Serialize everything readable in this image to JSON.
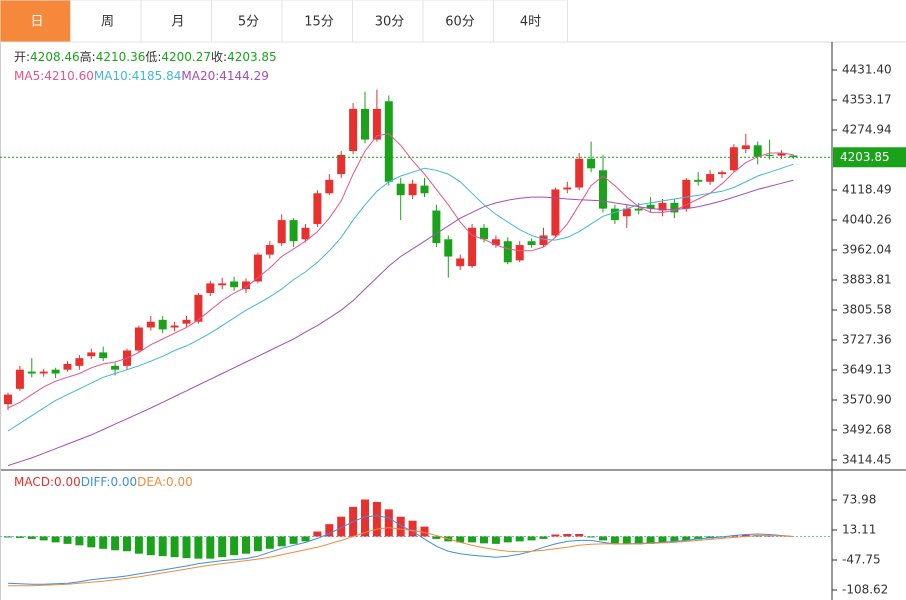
{
  "tabs": [
    "日",
    "周",
    "月",
    "5分",
    "15分",
    "30分",
    "60分",
    "4时"
  ],
  "active_tab": 0,
  "header_stats": [
    {
      "label": "开:",
      "value": "4208.46"
    },
    {
      "label": "高:",
      "value": "4210.36"
    },
    {
      "label": "低:",
      "value": "4200.27"
    },
    {
      "label": "收:",
      "value": "4203.85"
    }
  ],
  "chart_data": [
    {
      "type": "candlestick",
      "up_color": "#e8312f",
      "down_color": "#1aa31a",
      "last_price_color": "#1aa31a",
      "ylim": [
        3388.4,
        4496.6
      ],
      "yticks": [
        {
          "value": 4431.4,
          "label": "4431.40"
        },
        4353.17,
        4274.94,
        4118.49,
        4040.26,
        3962.04,
        3883.81,
        3805.58,
        3727.36,
        3649.13,
        {
          "value": 3570.9,
          "label": "3570.90"
        },
        3492.68,
        3414.45
      ],
      "open": [
        3560,
        3600,
        3645,
        3640,
        3650,
        3650,
        3660,
        3685,
        3695,
        3660,
        3660,
        3700,
        3760,
        3780,
        3760,
        3770,
        3775,
        3850,
        3870,
        3880,
        3860,
        3880,
        3950,
        3980,
        4040,
        3990,
        4030,
        4110,
        4160,
        4220,
        4330,
        4250,
        4350,
        4135,
        4105,
        4130,
        4065,
        3990,
        3920,
        3920,
        4020,
        3975,
        3985,
        3935,
        3985,
        3975,
        4000,
        4120,
        4125,
        4200,
        4170,
        4070,
        4050,
        4070,
        4080,
        4065,
        4085,
        4070,
        4145,
        4140,
        4160,
        4170,
        4225,
        4235,
        4210,
        4208,
        4208.46
      ],
      "high": [
        3590,
        3660,
        3680,
        3652,
        3655,
        3672,
        3688,
        3705,
        3710,
        3668,
        3705,
        3765,
        3790,
        3790,
        3775,
        3790,
        3850,
        3882,
        3890,
        3892,
        3888,
        3955,
        3985,
        4055,
        4045,
        4030,
        4118,
        4160,
        4220,
        4345,
        4375,
        4380,
        4365,
        4150,
        4145,
        4150,
        4080,
        4000,
        3950,
        4030,
        4030,
        4000,
        3995,
        3985,
        3992,
        4020,
        4125,
        4140,
        4215,
        4245,
        4210,
        4080,
        4080,
        4085,
        4100,
        4095,
        4095,
        4150,
        4165,
        4170,
        4170,
        4238,
        4265,
        4245,
        4250,
        4222,
        4210.36
      ],
      "low": [
        3545,
        3595,
        3630,
        3632,
        3628,
        3645,
        3650,
        3678,
        3672,
        3635,
        3650,
        3695,
        3752,
        3745,
        3750,
        3762,
        3770,
        3842,
        3860,
        3855,
        3850,
        3875,
        3940,
        3972,
        3970,
        3982,
        4022,
        4105,
        4150,
        4212,
        4240,
        4245,
        4130,
        4040,
        4095,
        4100,
        3970,
        3890,
        3910,
        3915,
        3982,
        3968,
        3925,
        3930,
        3968,
        3970,
        3995,
        4110,
        4118,
        4165,
        4060,
        4030,
        4020,
        4055,
        4060,
        4050,
        4045,
        4062,
        4130,
        4132,
        4150,
        4165,
        4215,
        4185,
        4198,
        4200,
        4200.27
      ],
      "close": [
        3585,
        3650,
        3640,
        3645,
        3640,
        3665,
        3680,
        3695,
        3680,
        3650,
        3700,
        3760,
        3775,
        3755,
        3765,
        3780,
        3845,
        3875,
        3875,
        3865,
        3880,
        3950,
        3975,
        4040,
        3985,
        4020,
        4110,
        4145,
        4210,
        4330,
        4250,
        4330,
        4140,
        4105,
        4135,
        4110,
        3980,
        3945,
        3940,
        4020,
        3990,
        3990,
        3930,
        3975,
        3975,
        4000,
        4120,
        4125,
        4200,
        4175,
        4070,
        4040,
        4070,
        4065,
        4070,
        4085,
        4060,
        4145,
        4140,
        4160,
        4165,
        4230,
        4235,
        4205,
        4208,
        4215,
        4203.85
      ],
      "series": [
        {
          "name": "MA5:",
          "value_label": "4210.60",
          "color": "#e8548b",
          "values": [
            3550,
            3565,
            3585,
            3605,
            3620,
            3630,
            3640,
            3655,
            3665,
            3670,
            3680,
            3695,
            3715,
            3730,
            3745,
            3760,
            3780,
            3805,
            3830,
            3850,
            3865,
            3890,
            3915,
            3945,
            3965,
            3985,
            4010,
            4045,
            4090,
            4160,
            4220,
            4260,
            4265,
            4235,
            4195,
            4160,
            4120,
            4080,
            4035,
            4000,
            3990,
            3975,
            3965,
            3960,
            3960,
            3970,
            3995,
            4030,
            4080,
            4130,
            4155,
            4130,
            4100,
            4075,
            4060,
            4060,
            4065,
            4080,
            4095,
            4110,
            4135,
            4165,
            4190,
            4205,
            4215,
            4215,
            4210.6
          ]
        },
        {
          "name": "MA10:",
          "value_label": "4185.84",
          "color": "#3fb8d8",
          "values": [
            3490,
            3510,
            3530,
            3550,
            3570,
            3585,
            3600,
            3615,
            3630,
            3640,
            3650,
            3660,
            3672,
            3685,
            3700,
            3712,
            3728,
            3745,
            3765,
            3785,
            3805,
            3822,
            3840,
            3860,
            3885,
            3905,
            3930,
            3960,
            3995,
            4040,
            4080,
            4115,
            4140,
            4155,
            4165,
            4175,
            4170,
            4160,
            4140,
            4110,
            4080,
            4055,
            4035,
            4015,
            4000,
            3990,
            3988,
            3995,
            4010,
            4030,
            4050,
            4060,
            4070,
            4080,
            4085,
            4090,
            4095,
            4100,
            4105,
            4110,
            4115,
            4125,
            4140,
            4155,
            4165,
            4175,
            4185.84
          ]
        },
        {
          "name": "MA20:",
          "value_label": "4144.29",
          "color": "#a64db8",
          "values": [
            3400,
            3410,
            3420,
            3432,
            3444,
            3456,
            3468,
            3480,
            3494,
            3508,
            3522,
            3536,
            3550,
            3565,
            3580,
            3595,
            3610,
            3625,
            3640,
            3655,
            3670,
            3685,
            3700,
            3715,
            3730,
            3748,
            3765,
            3785,
            3805,
            3830,
            3860,
            3890,
            3920,
            3945,
            3965,
            3985,
            4005,
            4025,
            4045,
            4060,
            4075,
            4085,
            4092,
            4097,
            4100,
            4100,
            4098,
            4095,
            4093,
            4092,
            4090,
            4085,
            4080,
            4075,
            4070,
            4068,
            4068,
            4070,
            4075,
            4082,
            4090,
            4100,
            4110,
            4120,
            4128,
            4136,
            4144.29
          ]
        }
      ]
    },
    {
      "type": "macd",
      "up_color": "#e8312f",
      "down_color": "#1aa31a",
      "ylim": [
        -128.91,
        134.85
      ],
      "yticks": [
        73.98,
        13.11,
        -47.75,
        -108.62
      ],
      "name": "MACD:",
      "value_label": "0.00",
      "values": [
        -2,
        -3,
        -5,
        -8,
        -12,
        -15,
        -18,
        -22,
        -25,
        -28,
        -30,
        -35,
        -38,
        -40,
        -42,
        -44,
        -45,
        -45,
        -42,
        -38,
        -35,
        -30,
        -25,
        -20,
        -15,
        -10,
        10,
        25,
        40,
        60,
        75,
        70,
        55,
        40,
        32,
        20,
        -5,
        -10,
        -12,
        -12,
        -14,
        -15,
        -12,
        -10,
        -8,
        -5,
        4,
        5,
        5,
        -2,
        -8,
        -14,
        -16,
        -16,
        -15,
        -12,
        -10,
        -8,
        -6,
        -4,
        -2,
        2,
        3,
        3,
        1,
        1,
        0
      ],
      "series": [
        {
          "name": "DIFF:",
          "value_label": "0.00",
          "color": "#3d8fe0",
          "values": [
            -95,
            -96,
            -97,
            -97,
            -96,
            -95,
            -92,
            -88,
            -85,
            -83,
            -80,
            -76,
            -72,
            -68,
            -64,
            -60,
            -55,
            -52,
            -49,
            -47,
            -45,
            -40,
            -32,
            -24,
            -18,
            -12,
            -4,
            6,
            18,
            30,
            40,
            42,
            38,
            22,
            10,
            -5,
            -20,
            -30,
            -35,
            -38,
            -40,
            -42,
            -40,
            -36,
            -30,
            -22,
            -15,
            -10,
            -8,
            -8,
            -12,
            -15,
            -15,
            -14,
            -13,
            -12,
            -10,
            -8,
            -5,
            -3,
            -1,
            2,
            4,
            5,
            4,
            2,
            0
          ]
        },
        {
          "name": "DEA:",
          "value_label": "0.00",
          "color": "#f08c3c",
          "values": [
            -100,
            -100,
            -100,
            -99,
            -98,
            -97,
            -95,
            -93,
            -91,
            -88,
            -85,
            -82,
            -78,
            -74,
            -70,
            -66,
            -62,
            -58,
            -55,
            -52,
            -49,
            -46,
            -42,
            -37,
            -32,
            -27,
            -22,
            -15,
            -8,
            0,
            8,
            15,
            18,
            15,
            12,
            8,
            2,
            -5,
            -12,
            -18,
            -23,
            -27,
            -30,
            -31,
            -30,
            -28,
            -25,
            -22,
            -18,
            -16,
            -15,
            -15,
            -15,
            -15,
            -14,
            -13,
            -12,
            -10,
            -8,
            -6,
            -4,
            -2,
            0,
            2,
            2,
            1,
            0
          ]
        }
      ]
    }
  ]
}
